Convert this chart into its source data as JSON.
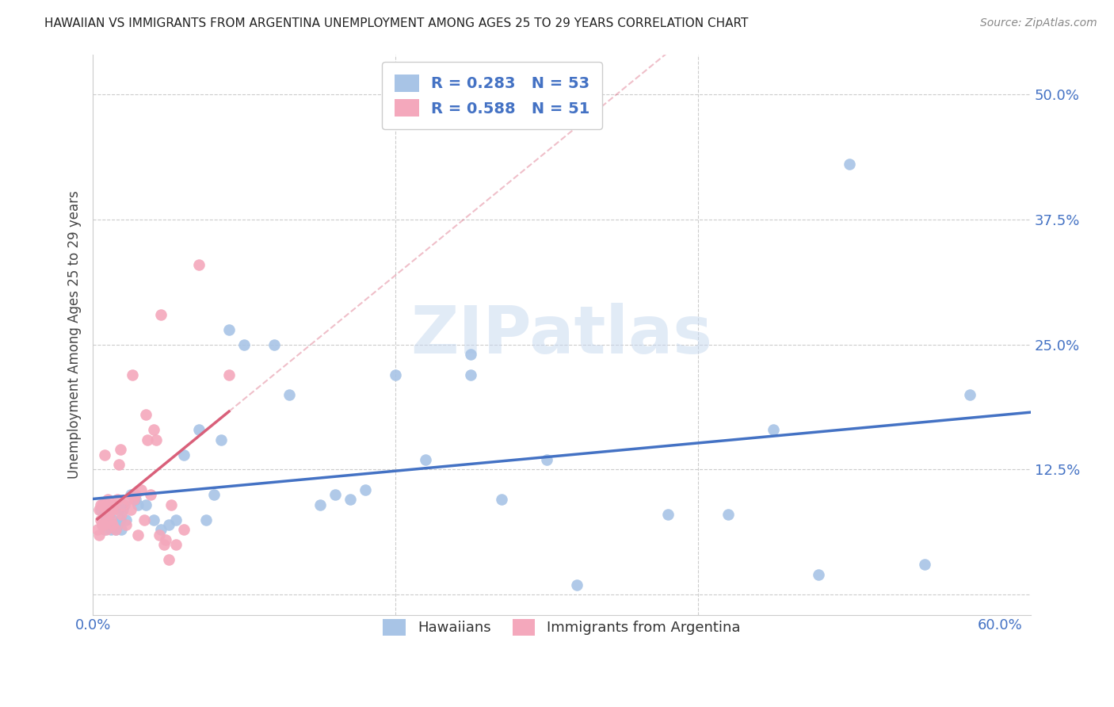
{
  "title": "HAWAIIAN VS IMMIGRANTS FROM ARGENTINA UNEMPLOYMENT AMONG AGES 25 TO 29 YEARS CORRELATION CHART",
  "source": "Source: ZipAtlas.com",
  "ylabel": "Unemployment Among Ages 25 to 29 years",
  "xlim": [
    0.0,
    0.62
  ],
  "ylim": [
    -0.02,
    0.54
  ],
  "hawaiian_R": 0.283,
  "hawaiian_N": 53,
  "argentina_R": 0.588,
  "argentina_N": 51,
  "hawaiian_color": "#a8c4e6",
  "hawaii_line_color": "#4472c4",
  "argentina_color": "#f4a8bc",
  "argentina_line_color": "#d9607a",
  "hawaiian_x": [
    0.005,
    0.006,
    0.007,
    0.008,
    0.009,
    0.01,
    0.011,
    0.012,
    0.013,
    0.014,
    0.015,
    0.016,
    0.017,
    0.018,
    0.019,
    0.02,
    0.021,
    0.022,
    0.025,
    0.028,
    0.03,
    0.035,
    0.04,
    0.045,
    0.05,
    0.055,
    0.06,
    0.07,
    0.075,
    0.08,
    0.085,
    0.09,
    0.1,
    0.12,
    0.13,
    0.15,
    0.16,
    0.17,
    0.18,
    0.2,
    0.22,
    0.25,
    0.25,
    0.27,
    0.3,
    0.32,
    0.38,
    0.42,
    0.45,
    0.48,
    0.5,
    0.55,
    0.58
  ],
  "hawaiian_y": [
    0.085,
    0.07,
    0.08,
    0.065,
    0.075,
    0.09,
    0.08,
    0.065,
    0.075,
    0.07,
    0.065,
    0.07,
    0.085,
    0.075,
    0.065,
    0.085,
    0.09,
    0.075,
    0.1,
    0.095,
    0.09,
    0.09,
    0.075,
    0.065,
    0.07,
    0.075,
    0.14,
    0.165,
    0.075,
    0.1,
    0.155,
    0.265,
    0.25,
    0.25,
    0.2,
    0.09,
    0.1,
    0.095,
    0.105,
    0.22,
    0.135,
    0.24,
    0.22,
    0.095,
    0.135,
    0.01,
    0.08,
    0.08,
    0.165,
    0.02,
    0.43,
    0.03,
    0.2
  ],
  "argentina_x": [
    0.003,
    0.004,
    0.004,
    0.005,
    0.005,
    0.006,
    0.006,
    0.007,
    0.007,
    0.008,
    0.008,
    0.009,
    0.009,
    0.01,
    0.01,
    0.011,
    0.012,
    0.012,
    0.013,
    0.013,
    0.014,
    0.015,
    0.016,
    0.017,
    0.018,
    0.019,
    0.02,
    0.022,
    0.023,
    0.025,
    0.026,
    0.027,
    0.028,
    0.03,
    0.032,
    0.034,
    0.035,
    0.036,
    0.038,
    0.04,
    0.042,
    0.044,
    0.045,
    0.047,
    0.048,
    0.05,
    0.052,
    0.055,
    0.06,
    0.07,
    0.09
  ],
  "argentina_y": [
    0.065,
    0.06,
    0.085,
    0.075,
    0.09,
    0.07,
    0.09,
    0.07,
    0.09,
    0.09,
    0.14,
    0.065,
    0.085,
    0.08,
    0.095,
    0.09,
    0.075,
    0.085,
    0.085,
    0.07,
    0.09,
    0.065,
    0.095,
    0.13,
    0.145,
    0.08,
    0.09,
    0.07,
    0.095,
    0.085,
    0.22,
    0.095,
    0.1,
    0.06,
    0.105,
    0.075,
    0.18,
    0.155,
    0.1,
    0.165,
    0.155,
    0.06,
    0.28,
    0.05,
    0.055,
    0.035,
    0.09,
    0.05,
    0.065,
    0.33,
    0.22
  ]
}
